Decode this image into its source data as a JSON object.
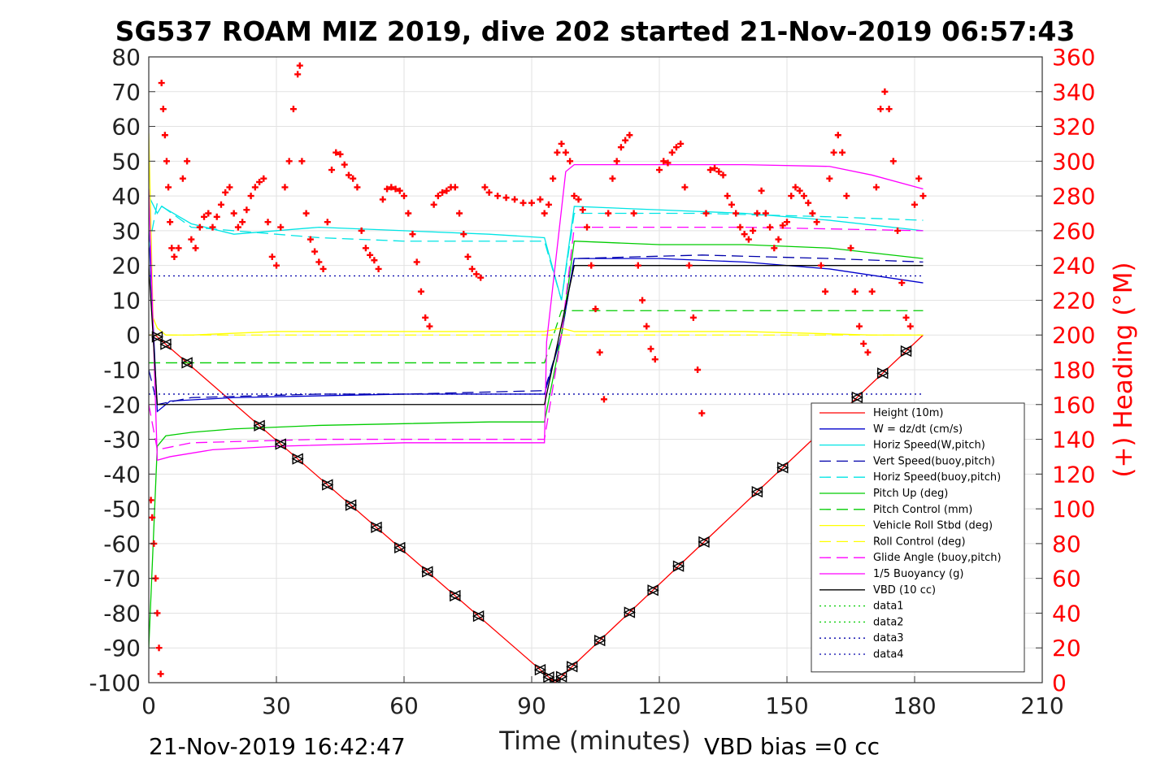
{
  "chart_data": {
    "type": "line",
    "title": "SG537 ROAM MIZ 2019, dive 202 started 21-Nov-2019 06:57:43",
    "xlabel": "Time (minutes)",
    "ylabel_right": "(+) Heading (°M)",
    "xlim": [
      0,
      210
    ],
    "ylim": [
      -100,
      80
    ],
    "ylim_right": [
      0,
      360
    ],
    "x_ticks": [
      "0",
      "30",
      "60",
      "90",
      "120",
      "150",
      "180",
      "210"
    ],
    "y_ticks": [
      "80",
      "70",
      "60",
      "50",
      "40",
      "30",
      "20",
      "10",
      "0",
      "-10",
      "-20",
      "-30",
      "-40",
      "-50",
      "-60",
      "-70",
      "-80",
      "-90",
      "-100"
    ],
    "y_right_ticks": [
      "360",
      "340",
      "320",
      "300",
      "280",
      "260",
      "240",
      "220",
      "200",
      "180",
      "160",
      "140",
      "120",
      "100",
      "80",
      "60",
      "40",
      "20",
      "0"
    ],
    "grid": true,
    "legend_position": "lower-right",
    "footer_left": "21-Nov-2019 16:42:47",
    "footer_right": "VBD bias =0 cc",
    "series": [
      {
        "name": "Height (10m)",
        "color": "#ff0000",
        "style": "solid",
        "x": [
          0,
          1.5,
          95.5,
          182
        ],
        "y": [
          0,
          0,
          -100,
          0
        ]
      },
      {
        "name": "W = dz/dt (cm/s)",
        "color": "#0000cc",
        "style": "solid",
        "x": [
          0,
          2,
          5,
          20,
          40,
          60,
          80,
          93,
          97,
          100,
          120,
          140,
          160,
          182
        ],
        "y": [
          30,
          -22,
          -19,
          -18,
          -17.5,
          -17,
          -17,
          -17,
          0,
          22,
          22,
          21,
          19,
          15
        ]
      },
      {
        "name": "Horiz Speed(W,pitch)",
        "color": "#00e5e5",
        "style": "solid",
        "x": [
          0,
          2,
          3,
          10,
          20,
          40,
          60,
          80,
          93,
          97,
          100,
          120,
          140,
          160,
          182
        ],
        "y": [
          40,
          35,
          37,
          32,
          29,
          31,
          30,
          29,
          28,
          10,
          37,
          36,
          35,
          33,
          30
        ]
      },
      {
        "name": "Vert Speed(buoy,pitch)",
        "color": "#0000aa",
        "style": "dashed",
        "x": [
          0,
          2,
          10,
          40,
          60,
          93,
          97,
          100,
          130,
          160,
          182
        ],
        "y": [
          -10,
          -20,
          -18,
          -17,
          -17,
          -16,
          0,
          22,
          23,
          22,
          21
        ]
      },
      {
        "name": "Horiz Speed(buoy,pitch)",
        "color": "#00e5e5",
        "style": "dashed",
        "x": [
          0,
          2,
          10,
          40,
          60,
          93,
          97,
          100,
          130,
          160,
          182
        ],
        "y": [
          25,
          38,
          31,
          28,
          27,
          27,
          10,
          35,
          35,
          34,
          33
        ]
      },
      {
        "name": "Pitch Up (deg)",
        "color": "#00cc00",
        "style": "solid",
        "x": [
          0,
          2,
          4,
          10,
          20,
          40,
          60,
          80,
          93,
          97,
          100,
          120,
          140,
          160,
          182
        ],
        "y": [
          -90,
          -32,
          -29,
          -28,
          -27,
          -26,
          -25.5,
          -25,
          -25,
          0,
          27,
          26,
          26,
          25,
          22
        ]
      },
      {
        "name": "Pitch Control (mm)",
        "color": "#00cc00",
        "style": "dashed",
        "x": [
          0,
          93,
          97,
          182
        ],
        "y": [
          -8,
          -8,
          7,
          7
        ]
      },
      {
        "name": "Vehicle Roll Stbd (deg)",
        "color": "#ffff00",
        "style": "solid",
        "x": [
          0,
          1,
          2,
          4,
          10,
          30,
          60,
          93,
          97,
          100,
          140,
          170,
          182
        ],
        "y": [
          58,
          5,
          2,
          0,
          0,
          1,
          1,
          1,
          2,
          1,
          1,
          0,
          0
        ]
      },
      {
        "name": "Roll Control (deg)",
        "color": "#ffff00",
        "style": "dashed",
        "x": [
          0,
          182
        ],
        "y": [
          0,
          0
        ]
      },
      {
        "name": "Glide Angle (buoy,pitch)",
        "color": "#ff00ff",
        "style": "dashed",
        "x": [
          0,
          2,
          10,
          40,
          93,
          97,
          100,
          140,
          182
        ],
        "y": [
          -20,
          -33,
          -31,
          -30,
          -30,
          0,
          31,
          31,
          30
        ]
      },
      {
        "name": "1/5 Buoyancy (g)",
        "color": "#ff00ff",
        "style": "solid",
        "x": [
          0,
          2,
          5,
          15,
          30,
          60,
          93,
          93.5,
          98,
          100,
          120,
          140,
          160,
          170,
          182
        ],
        "y": [
          42,
          -36,
          -35,
          -33,
          -32,
          -31,
          -31,
          -2,
          47,
          49,
          49,
          49,
          48.5,
          46,
          42
        ]
      },
      {
        "name": "VBD (10 cc)",
        "color": "#000000",
        "style": "solid",
        "x": [
          0,
          2,
          93,
          100,
          182
        ],
        "y": [
          20,
          -20,
          -20,
          20,
          20
        ]
      },
      {
        "name": "data1",
        "color": "#00cc00",
        "style": "dotted",
        "x": [],
        "y": []
      },
      {
        "name": "data2",
        "color": "#00cc00",
        "style": "dotted",
        "x": [],
        "y": []
      },
      {
        "name": "data3",
        "color": "#0000aa",
        "style": "dotted",
        "x": [
          0,
          182
        ],
        "y": [
          17,
          17
        ]
      },
      {
        "name": "data4",
        "color": "#0000aa",
        "style": "dotted",
        "x": [
          0,
          182
        ],
        "y": [
          -17,
          -17
        ]
      }
    ],
    "heading_series": {
      "color": "#ff0000",
      "marker": "+",
      "axis": "right",
      "points": [
        [
          0.5,
          105
        ],
        [
          0.8,
          95
        ],
        [
          1.2,
          80
        ],
        [
          1.6,
          60
        ],
        [
          2.0,
          40
        ],
        [
          2.4,
          20
        ],
        [
          2.8,
          5
        ],
        [
          3.0,
          345
        ],
        [
          3.4,
          330
        ],
        [
          3.8,
          315
        ],
        [
          4.2,
          300
        ],
        [
          4.6,
          285
        ],
        [
          5.0,
          265
        ],
        [
          5.4,
          250
        ],
        [
          6,
          245
        ],
        [
          7,
          250
        ],
        [
          8,
          290
        ],
        [
          9,
          300
        ],
        [
          10,
          255
        ],
        [
          11,
          250
        ],
        [
          12,
          262
        ],
        [
          13,
          268
        ],
        [
          14,
          270
        ],
        [
          15,
          262
        ],
        [
          16,
          268
        ],
        [
          17,
          275
        ],
        [
          18,
          282
        ],
        [
          19,
          285
        ],
        [
          20,
          270
        ],
        [
          21,
          262
        ],
        [
          22,
          265
        ],
        [
          23,
          272
        ],
        [
          24,
          280
        ],
        [
          25,
          285
        ],
        [
          26,
          288
        ],
        [
          27,
          290
        ],
        [
          28,
          265
        ],
        [
          29,
          245
        ],
        [
          30,
          240
        ],
        [
          31,
          262
        ],
        [
          32,
          285
        ],
        [
          33,
          300
        ],
        [
          34,
          330
        ],
        [
          35,
          350
        ],
        [
          35.5,
          355
        ],
        [
          36,
          300
        ],
        [
          37,
          270
        ],
        [
          38,
          255
        ],
        [
          39,
          248
        ],
        [
          40,
          242
        ],
        [
          41,
          238
        ],
        [
          42,
          265
        ],
        [
          43,
          295
        ],
        [
          44,
          305
        ],
        [
          45,
          304
        ],
        [
          46,
          298
        ],
        [
          47,
          292
        ],
        [
          48,
          290
        ],
        [
          49,
          285
        ],
        [
          50,
          260
        ],
        [
          51,
          250
        ],
        [
          52,
          246
        ],
        [
          53,
          243
        ],
        [
          54,
          238
        ],
        [
          55,
          278
        ],
        [
          56,
          284
        ],
        [
          57,
          285
        ],
        [
          58,
          284
        ],
        [
          59,
          283
        ],
        [
          60,
          280
        ],
        [
          61,
          270
        ],
        [
          62,
          258
        ],
        [
          63,
          242
        ],
        [
          64,
          225
        ],
        [
          65,
          210
        ],
        [
          66,
          205
        ],
        [
          67,
          275
        ],
        [
          68,
          280
        ],
        [
          69,
          282
        ],
        [
          70,
          283
        ],
        [
          71,
          285
        ],
        [
          72,
          285
        ],
        [
          73,
          270
        ],
        [
          74,
          258
        ],
        [
          75,
          245
        ],
        [
          76,
          238
        ],
        [
          77,
          235
        ],
        [
          78,
          233
        ],
        [
          79,
          285
        ],
        [
          80,
          282
        ],
        [
          82,
          280
        ],
        [
          84,
          279
        ],
        [
          86,
          278
        ],
        [
          88,
          276
        ],
        [
          90,
          276
        ],
        [
          92,
          278
        ],
        [
          93,
          270
        ],
        [
          94,
          275
        ],
        [
          95,
          290
        ],
        [
          96,
          305
        ],
        [
          97,
          310
        ],
        [
          98,
          305
        ],
        [
          99,
          300
        ],
        [
          100,
          280
        ],
        [
          101,
          278
        ],
        [
          102,
          272
        ],
        [
          103,
          262
        ],
        [
          104,
          240
        ],
        [
          105,
          215
        ],
        [
          106,
          190
        ],
        [
          107,
          163
        ],
        [
          108,
          270
        ],
        [
          109,
          290
        ],
        [
          110,
          300
        ],
        [
          111,
          308
        ],
        [
          112,
          312
        ],
        [
          113,
          315
        ],
        [
          114,
          270
        ],
        [
          115,
          240
        ],
        [
          116,
          220
        ],
        [
          117,
          205
        ],
        [
          118,
          192
        ],
        [
          119,
          186
        ],
        [
          120,
          295
        ],
        [
          121,
          300
        ],
        [
          122,
          299
        ],
        [
          123,
          305
        ],
        [
          124,
          308
        ],
        [
          125,
          310
        ],
        [
          126,
          285
        ],
        [
          127,
          240
        ],
        [
          128,
          210
        ],
        [
          129,
          180
        ],
        [
          130,
          155
        ],
        [
          131,
          270
        ],
        [
          132,
          295
        ],
        [
          133,
          296
        ],
        [
          134,
          294
        ],
        [
          135,
          292
        ],
        [
          136,
          280
        ],
        [
          137,
          275
        ],
        [
          138,
          270
        ],
        [
          139,
          262
        ],
        [
          140,
          258
        ],
        [
          141,
          255
        ],
        [
          142,
          260
        ],
        [
          143,
          270
        ],
        [
          144,
          283
        ],
        [
          145,
          270
        ],
        [
          146,
          262
        ],
        [
          147,
          250
        ],
        [
          148,
          255
        ],
        [
          149,
          263
        ],
        [
          150,
          265
        ],
        [
          151,
          280
        ],
        [
          152,
          285
        ],
        [
          153,
          283
        ],
        [
          154,
          280
        ],
        [
          155,
          276
        ],
        [
          156,
          270
        ],
        [
          157,
          265
        ],
        [
          158,
          240
        ],
        [
          159,
          225
        ],
        [
          160,
          290
        ],
        [
          161,
          305
        ],
        [
          162,
          315
        ],
        [
          163,
          305
        ],
        [
          164,
          280
        ],
        [
          165,
          250
        ],
        [
          166,
          225
        ],
        [
          167,
          205
        ],
        [
          168,
          195
        ],
        [
          169,
          190
        ],
        [
          170,
          225
        ],
        [
          171,
          285
        ],
        [
          172,
          330
        ],
        [
          173,
          340
        ],
        [
          174,
          330
        ],
        [
          175,
          300
        ],
        [
          176,
          260
        ],
        [
          177,
          230
        ],
        [
          178,
          210
        ],
        [
          179,
          205
        ],
        [
          180,
          275
        ],
        [
          181,
          290
        ],
        [
          182,
          280
        ]
      ]
    },
    "depth_markers": {
      "color": "#000000",
      "x": [
        2,
        4,
        9,
        26,
        31,
        35,
        42,
        47.5,
        53.5,
        59,
        65.5,
        72,
        77.5,
        92,
        94,
        95.5,
        97,
        99.5,
        106,
        113,
        118.5,
        124.5,
        130.5,
        143,
        149,
        158.5,
        166.5,
        172.5,
        178
      ]
    }
  }
}
